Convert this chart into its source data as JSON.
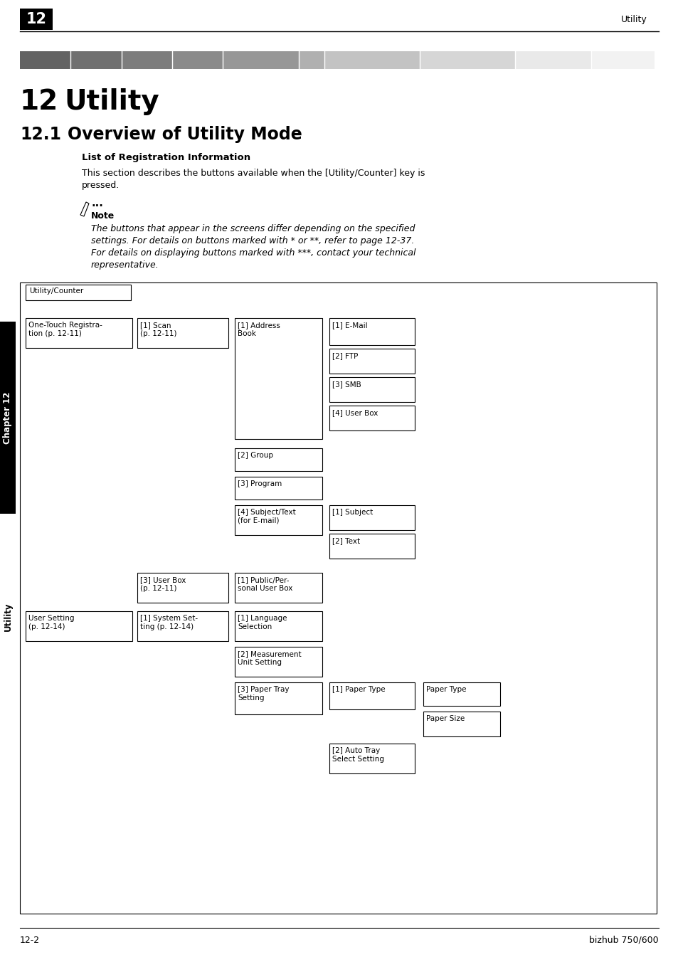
{
  "page_num": "12",
  "header_right": "Utility",
  "chapter_title_num": "12",
  "chapter_title_text": "Utility",
  "section_num": "12.1",
  "section_text": "Overview of Utility Mode",
  "list_title": "List of Registration Information",
  "body_text1": "This section describes the buttons available when the [Utility/Counter] key is",
  "body_text2": "pressed.",
  "note_label": "Note",
  "note_line1": "The buttons that appear in the screens differ depending on the specified",
  "note_line2": "settings. For details on buttons marked with * or **, refer to page 12-37.",
  "note_line3": "For details on displaying buttons marked with ***, contact your technical",
  "note_line4": "representative.",
  "footer_left": "12-2",
  "footer_right": "bizhub 750/600",
  "sidebar_ch": "Chapter 12",
  "sidebar_ut": "Utility",
  "grad_colors": [
    "#636363",
    "#707070",
    "#7d7d7d",
    "#8a8a8a",
    "#979797",
    "#b0b0b0",
    "#c3c3c3",
    "#d6d6d6",
    "#e9e9e9",
    "#f2f2f2"
  ],
  "grad_splits": [
    0.08,
    0.08,
    0.08,
    0.08,
    0.12,
    0.04,
    0.15,
    0.15,
    0.12,
    0.1
  ]
}
